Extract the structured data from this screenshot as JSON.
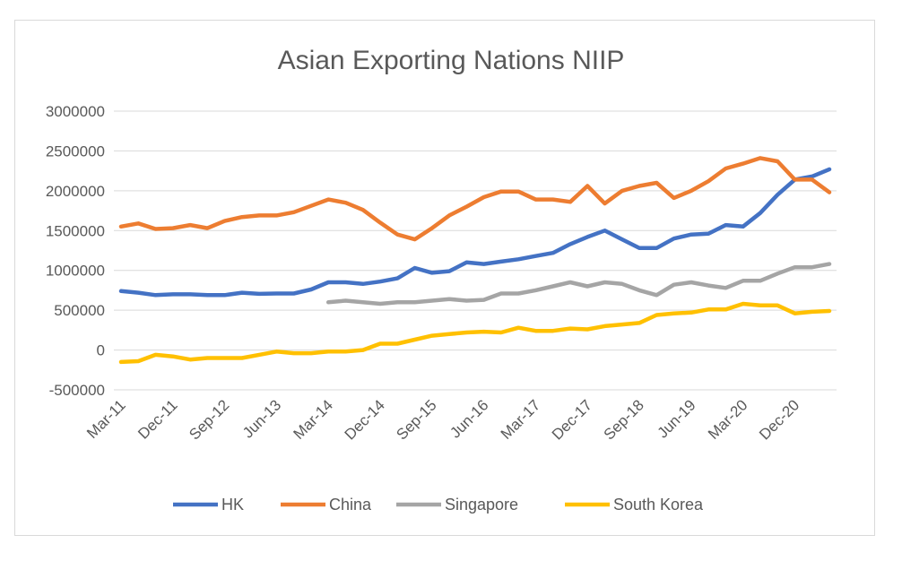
{
  "chart_data": {
    "type": "line",
    "title": "Asian Exporting Nations NIIP",
    "xlabel": "",
    "ylabel": "",
    "ylim": [
      -500000,
      3000000
    ],
    "yticks": [
      "3000000",
      "2500000",
      "2000000",
      "1500000",
      "1000000",
      "500000",
      "0",
      "-500000"
    ],
    "yticks_values": [
      3000000,
      2500000,
      2000000,
      1500000,
      1000000,
      500000,
      0,
      -500000
    ],
    "x_tick_labels": [
      "Mar-11",
      "Dec-11",
      "Sep-12",
      "Jun-13",
      "Mar-14",
      "Dec-14",
      "Sep-15",
      "Jun-16",
      "Mar-17",
      "Dec-17",
      "Sep-18",
      "Jun-19",
      "Mar-20",
      "Dec-20"
    ],
    "x_tick_every": 3,
    "grid": "horizontal",
    "legend_position": "bottom",
    "x": [
      "Mar-11",
      "Jun-11",
      "Sep-11",
      "Dec-11",
      "Mar-12",
      "Jun-12",
      "Sep-12",
      "Dec-12",
      "Mar-13",
      "Jun-13",
      "Sep-13",
      "Dec-13",
      "Mar-14",
      "Jun-14",
      "Sep-14",
      "Dec-14",
      "Mar-15",
      "Jun-15",
      "Sep-15",
      "Dec-15",
      "Mar-16",
      "Jun-16",
      "Sep-16",
      "Dec-16",
      "Mar-17",
      "Jun-17",
      "Sep-17",
      "Dec-17",
      "Mar-18",
      "Jun-18",
      "Sep-18",
      "Dec-18",
      "Mar-19",
      "Jun-19",
      "Sep-19",
      "Dec-19",
      "Mar-20",
      "Jun-20",
      "Sep-20",
      "Dec-20",
      "Mar-21",
      "Jun-21"
    ],
    "series": [
      {
        "name": "HK",
        "color": "#4472C4",
        "values": [
          740000,
          720000,
          690000,
          700000,
          700000,
          690000,
          690000,
          720000,
          705000,
          710000,
          710000,
          760000,
          850000,
          850000,
          830000,
          860000,
          900000,
          1030000,
          970000,
          990000,
          1100000,
          1080000,
          1110000,
          1140000,
          1180000,
          1220000,
          1330000,
          1420000,
          1500000,
          1390000,
          1280000,
          1280000,
          1400000,
          1450000,
          1460000,
          1570000,
          1550000,
          1720000,
          1950000,
          2140000,
          2180000,
          2270000
        ]
      },
      {
        "name": "China",
        "color": "#ED7D31",
        "values": [
          1550000,
          1590000,
          1520000,
          1530000,
          1570000,
          1530000,
          1620000,
          1670000,
          1690000,
          1690000,
          1730000,
          1810000,
          1890000,
          1850000,
          1760000,
          1600000,
          1450000,
          1390000,
          1530000,
          1690000,
          1800000,
          1920000,
          1990000,
          1990000,
          1890000,
          1890000,
          1860000,
          2060000,
          1840000,
          2000000,
          2060000,
          2100000,
          1910000,
          2000000,
          2120000,
          2280000,
          2340000,
          2410000,
          2370000,
          2140000,
          2140000,
          1980000
        ]
      },
      {
        "name": "Singapore",
        "color": "#A5A5A5",
        "values": [
          null,
          null,
          null,
          null,
          null,
          null,
          null,
          null,
          null,
          null,
          null,
          null,
          600000,
          620000,
          600000,
          580000,
          600000,
          600000,
          620000,
          640000,
          620000,
          630000,
          710000,
          710000,
          750000,
          800000,
          850000,
          800000,
          850000,
          830000,
          750000,
          690000,
          820000,
          850000,
          810000,
          780000,
          870000,
          870000,
          960000,
          1040000,
          1040000,
          1080000
        ]
      },
      {
        "name": "South Korea",
        "color": "#FFC000",
        "values": [
          -150000,
          -140000,
          -60000,
          -80000,
          -120000,
          -100000,
          -100000,
          -100000,
          -60000,
          -20000,
          -40000,
          -40000,
          -20000,
          -20000,
          0,
          80000,
          80000,
          130000,
          180000,
          200000,
          220000,
          230000,
          220000,
          280000,
          240000,
          240000,
          270000,
          260000,
          300000,
          320000,
          340000,
          440000,
          460000,
          470000,
          510000,
          510000,
          580000,
          560000,
          560000,
          460000,
          480000,
          490000
        ]
      }
    ]
  }
}
